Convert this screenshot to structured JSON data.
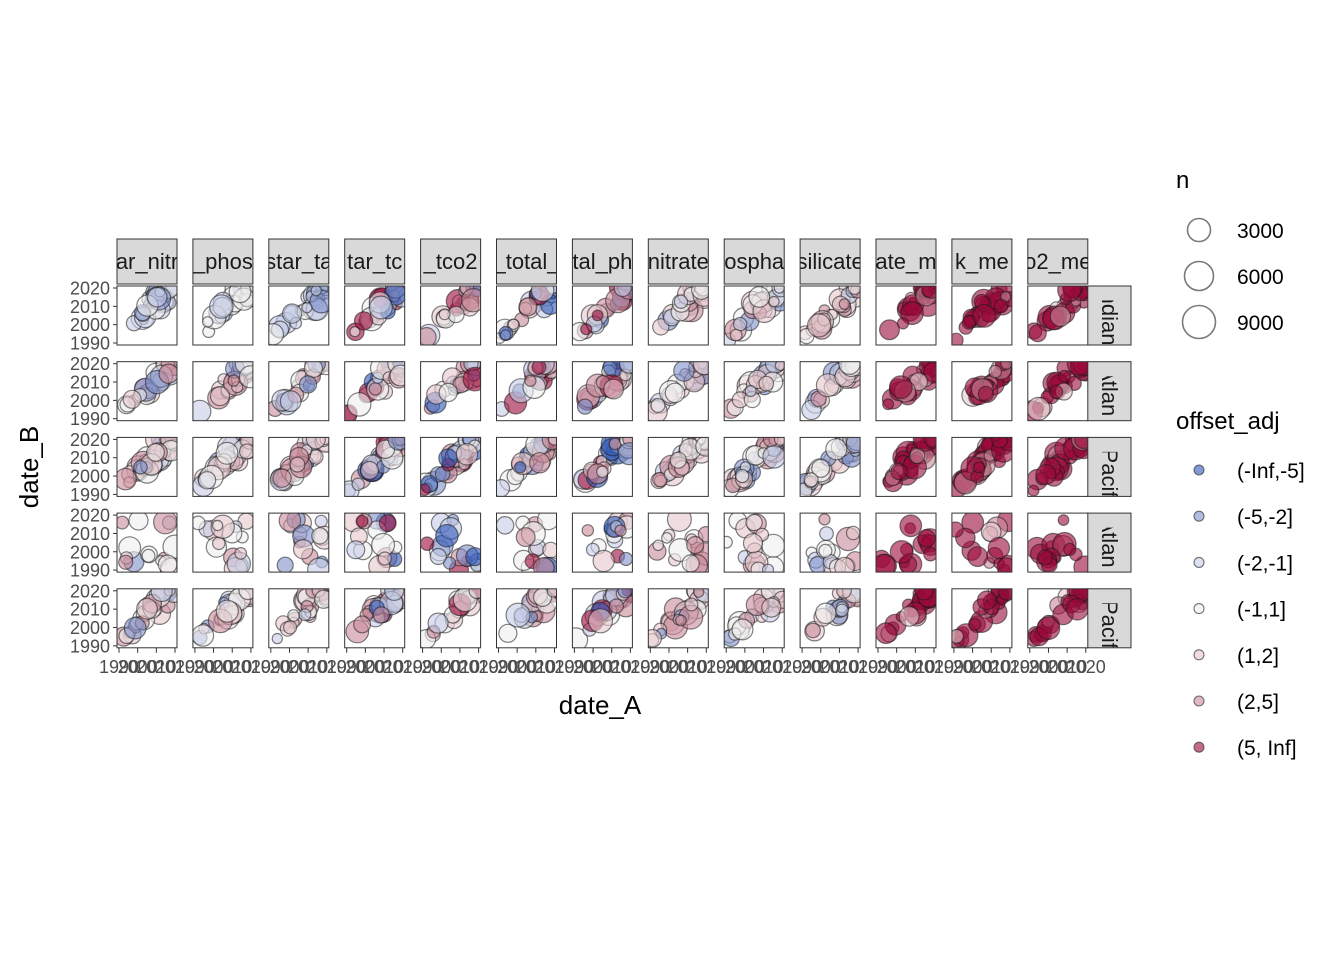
{
  "chart_data": {
    "type": "scatter",
    "xlabel": "date_A",
    "ylabel": "date_B",
    "xlim": [
      1990,
      2020
    ],
    "ylim": [
      1990,
      2020
    ],
    "y_ticks": [
      "1990",
      "2000",
      "2010",
      "2020"
    ],
    "x_tick_text": "1990",
    "x_tick_text_row": [
      "1990",
      "2000",
      "2010",
      "2020"
    ],
    "column_facets": [
      "ar_nitr",
      "_phos",
      "star_ta",
      "tar_tc",
      "_tco2",
      "_total_",
      "tal_ph",
      "nitrate",
      "ospha",
      "silicate",
      "ate_m",
      "k_me",
      "o2_me"
    ],
    "row_facets": [
      "Indian",
      "Atlan",
      ". Pacif",
      "Atlan",
      ". Pacif"
    ],
    "legend_size": {
      "title": "n",
      "entries": [
        {
          "label": "3000",
          "value": 3000
        },
        {
          "label": "6000",
          "value": 6000
        },
        {
          "label": "9000",
          "value": 9000
        }
      ]
    },
    "legend_color": {
      "title": "offset_adj",
      "entries": [
        {
          "label": "(-Inf,-5]",
          "color": "#2f57b5"
        },
        {
          "label": "(-5,-2]",
          "color": "#7d8fc9"
        },
        {
          "label": "(-2,-1]",
          "color": "#c5cbe6"
        },
        {
          "label": "(-1,1]",
          "color": "#f0eeee"
        },
        {
          "label": "(1,2]",
          "color": "#e5c6cc"
        },
        {
          "label": "(2,5]",
          "color": "#c98a9a"
        },
        {
          "label": "(5, Inf]",
          "color": "#9b0a3a"
        }
      ]
    },
    "grid": false,
    "legend_position": "right"
  },
  "colors": {
    "strip_fill": "#d9d9d9",
    "panel_border": "#333333",
    "axis_text": "#4d4d4d"
  }
}
